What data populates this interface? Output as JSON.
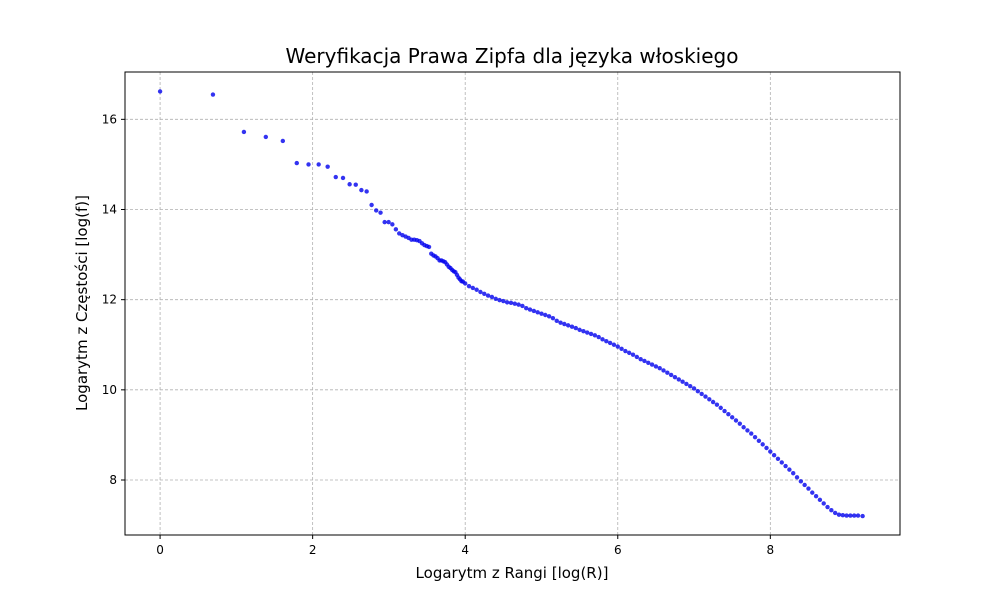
{
  "chart_data": {
    "type": "scatter",
    "title": "Weryfikacja Prawa Zipfa dla języka włoskiego",
    "xlabel": "Logarytm z Rangi [log(R)]",
    "ylabel": "Logarytm z Częstości [log(f)]",
    "xlim": [
      -0.46,
      9.7
    ],
    "ylim": [
      6.78,
      17.05
    ],
    "xticks": [
      0,
      2,
      4,
      6,
      8
    ],
    "yticks": [
      8,
      10,
      12,
      14,
      16
    ],
    "xtick_labels": [
      "0",
      "2",
      "4",
      "6",
      "8"
    ],
    "ytick_labels": [
      "8",
      "10",
      "12",
      "14",
      "16"
    ],
    "grid": true,
    "marker_color": "#0000ee",
    "series": [
      {
        "points": [
          [
            0.0,
            16.62
          ],
          [
            0.693,
            16.55
          ],
          [
            1.099,
            15.72
          ],
          [
            1.386,
            15.61
          ],
          [
            1.609,
            15.52
          ],
          [
            1.792,
            15.03
          ],
          [
            1.946,
            15.0
          ],
          [
            2.079,
            15.0
          ],
          [
            2.197,
            14.95
          ],
          [
            2.303,
            14.72
          ],
          [
            2.398,
            14.7
          ],
          [
            2.485,
            14.56
          ],
          [
            2.565,
            14.55
          ],
          [
            2.639,
            14.43
          ],
          [
            2.708,
            14.4
          ],
          [
            2.773,
            14.1
          ],
          [
            2.833,
            13.98
          ],
          [
            2.89,
            13.93
          ],
          [
            2.944,
            13.72
          ],
          [
            2.996,
            13.72
          ],
          [
            3.045,
            13.67
          ],
          [
            3.091,
            13.56
          ],
          [
            3.135,
            13.47
          ],
          [
            3.178,
            13.43
          ],
          [
            3.219,
            13.4
          ],
          [
            3.258,
            13.37
          ],
          [
            3.296,
            13.33
          ],
          [
            3.332,
            13.33
          ],
          [
            3.367,
            13.32
          ],
          [
            3.401,
            13.3
          ],
          [
            3.434,
            13.25
          ],
          [
            3.466,
            13.21
          ],
          [
            3.497,
            13.19
          ],
          [
            3.526,
            13.17
          ],
          [
            3.555,
            13.02
          ],
          [
            3.584,
            12.98
          ],
          [
            3.611,
            12.96
          ],
          [
            3.638,
            12.92
          ],
          [
            3.664,
            12.87
          ],
          [
            3.689,
            12.87
          ],
          [
            3.714,
            12.85
          ],
          [
            3.738,
            12.83
          ],
          [
            3.761,
            12.78
          ],
          [
            3.784,
            12.73
          ],
          [
            3.807,
            12.7
          ],
          [
            3.829,
            12.66
          ],
          [
            3.85,
            12.63
          ],
          [
            3.871,
            12.61
          ],
          [
            3.892,
            12.55
          ],
          [
            3.912,
            12.49
          ],
          [
            3.932,
            12.45
          ],
          [
            3.951,
            12.41
          ],
          [
            3.97,
            12.4
          ],
          [
            4.0,
            12.36
          ],
          [
            4.05,
            12.3
          ],
          [
            4.1,
            12.26
          ],
          [
            4.15,
            12.22
          ],
          [
            4.2,
            12.17
          ],
          [
            4.25,
            12.13
          ],
          [
            4.3,
            12.09
          ],
          [
            4.35,
            12.06
          ],
          [
            4.4,
            12.02
          ],
          [
            4.45,
            11.99
          ],
          [
            4.5,
            11.97
          ],
          [
            4.55,
            11.94
          ],
          [
            4.6,
            11.93
          ],
          [
            4.65,
            11.91
          ],
          [
            4.7,
            11.89
          ],
          [
            4.75,
            11.86
          ],
          [
            4.8,
            11.81
          ],
          [
            4.85,
            11.78
          ],
          [
            4.9,
            11.75
          ],
          [
            4.95,
            11.72
          ],
          [
            5.0,
            11.69
          ],
          [
            5.05,
            11.66
          ],
          [
            5.1,
            11.63
          ],
          [
            5.15,
            11.59
          ],
          [
            5.2,
            11.53
          ],
          [
            5.25,
            11.49
          ],
          [
            5.3,
            11.46
          ],
          [
            5.35,
            11.43
          ],
          [
            5.4,
            11.4
          ],
          [
            5.45,
            11.37
          ],
          [
            5.5,
            11.33
          ],
          [
            5.55,
            11.3
          ],
          [
            5.6,
            11.27
          ],
          [
            5.65,
            11.24
          ],
          [
            5.7,
            11.21
          ],
          [
            5.75,
            11.17
          ],
          [
            5.8,
            11.12
          ],
          [
            5.85,
            11.08
          ],
          [
            5.9,
            11.04
          ],
          [
            5.95,
            11.0
          ],
          [
            6.0,
            10.96
          ],
          [
            6.05,
            10.91
          ],
          [
            6.1,
            10.86
          ],
          [
            6.15,
            10.82
          ],
          [
            6.2,
            10.78
          ],
          [
            6.25,
            10.73
          ],
          [
            6.3,
            10.68
          ],
          [
            6.35,
            10.64
          ],
          [
            6.4,
            10.6
          ],
          [
            6.45,
            10.56
          ],
          [
            6.5,
            10.52
          ],
          [
            6.55,
            10.48
          ],
          [
            6.6,
            10.43
          ],
          [
            6.65,
            10.38
          ],
          [
            6.7,
            10.33
          ],
          [
            6.75,
            10.28
          ],
          [
            6.8,
            10.23
          ],
          [
            6.85,
            10.18
          ],
          [
            6.9,
            10.13
          ],
          [
            6.95,
            10.08
          ],
          [
            7.0,
            10.03
          ],
          [
            7.05,
            9.97
          ],
          [
            7.1,
            9.91
          ],
          [
            7.15,
            9.85
          ],
          [
            7.2,
            9.79
          ],
          [
            7.25,
            9.73
          ],
          [
            7.3,
            9.67
          ],
          [
            7.35,
            9.6
          ],
          [
            7.4,
            9.53
          ],
          [
            7.45,
            9.46
          ],
          [
            7.5,
            9.39
          ],
          [
            7.55,
            9.32
          ],
          [
            7.6,
            9.25
          ],
          [
            7.65,
            9.17
          ],
          [
            7.7,
            9.1
          ],
          [
            7.75,
            9.03
          ],
          [
            7.8,
            8.95
          ],
          [
            7.85,
            8.87
          ],
          [
            7.9,
            8.79
          ],
          [
            7.95,
            8.71
          ],
          [
            8.0,
            8.63
          ],
          [
            8.05,
            8.55
          ],
          [
            8.1,
            8.47
          ],
          [
            8.15,
            8.39
          ],
          [
            8.2,
            8.31
          ],
          [
            8.25,
            8.23
          ],
          [
            8.3,
            8.15
          ],
          [
            8.35,
            8.06
          ],
          [
            8.4,
            7.97
          ],
          [
            8.45,
            7.89
          ],
          [
            8.5,
            7.81
          ],
          [
            8.55,
            7.72
          ],
          [
            8.6,
            7.64
          ],
          [
            8.65,
            7.56
          ],
          [
            8.7,
            7.48
          ],
          [
            8.75,
            7.4
          ],
          [
            8.8,
            7.33
          ],
          [
            8.85,
            7.27
          ],
          [
            8.9,
            7.23
          ],
          [
            8.95,
            7.22
          ],
          [
            9.0,
            7.21
          ],
          [
            9.05,
            7.21
          ],
          [
            9.1,
            7.21
          ],
          [
            9.15,
            7.21
          ],
          [
            9.21,
            7.2
          ]
        ]
      }
    ]
  }
}
